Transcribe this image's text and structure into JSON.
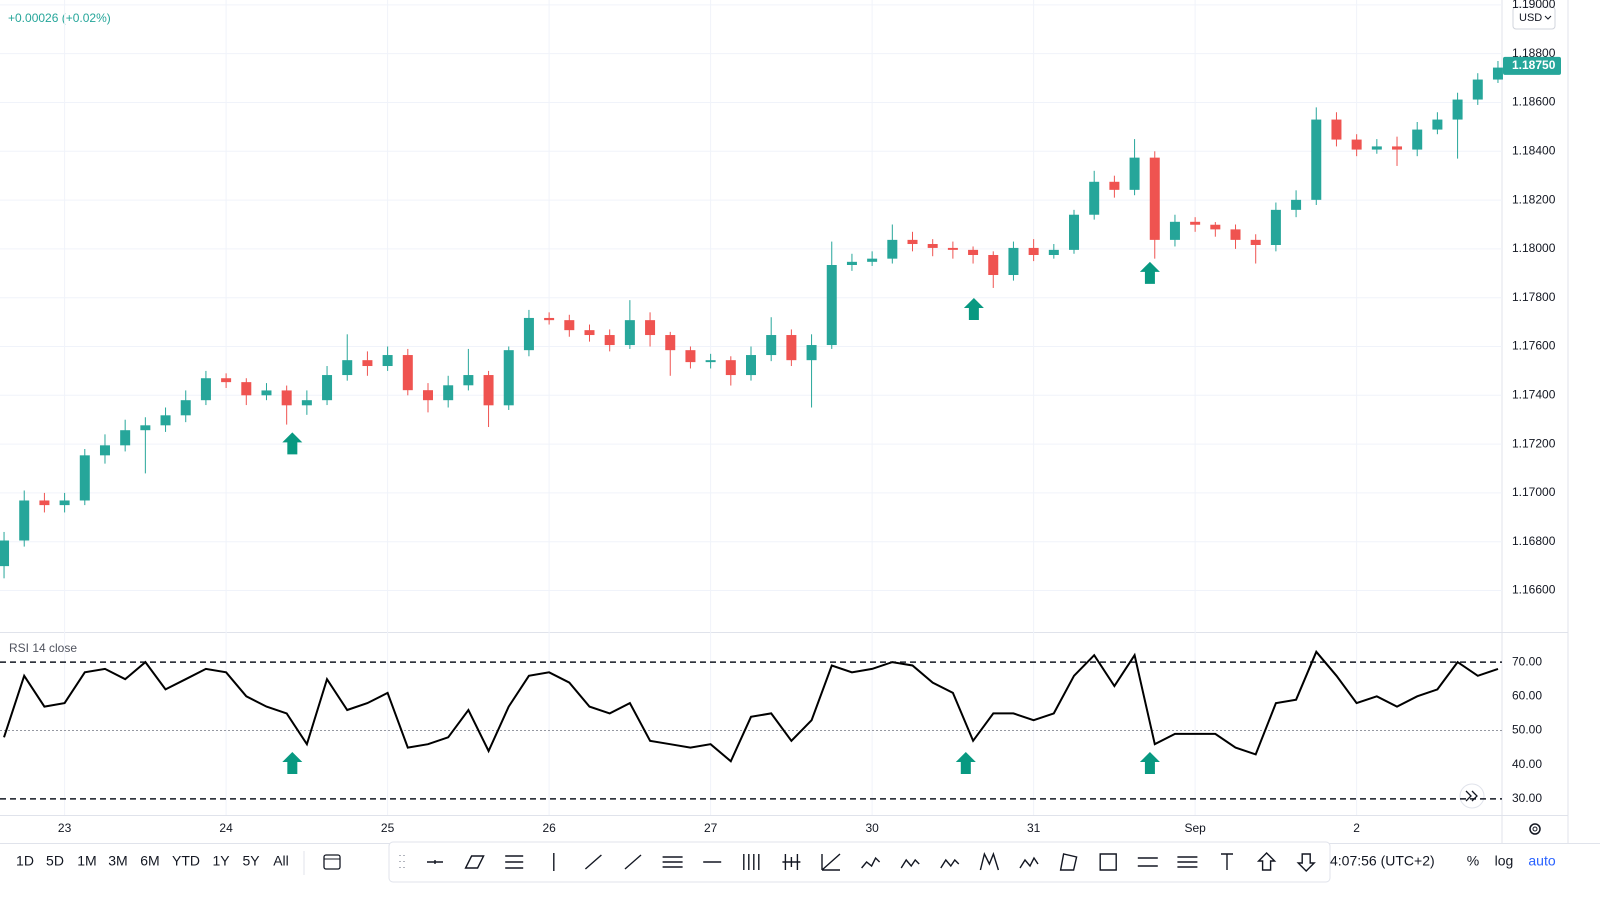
{
  "header": {
    "change": "+0.00026 (+0.02%)",
    "currency": "USD"
  },
  "chart_data": [
    {
      "type": "candlestick",
      "x": [
        -0.375,
        -0.25,
        -0.125,
        0,
        0.125,
        0.25,
        0.375,
        0.5,
        0.625,
        0.75,
        0.875,
        1,
        1.125,
        1.25,
        1.375,
        1.5,
        1.625,
        1.75,
        1.875,
        2,
        2.125,
        2.25,
        2.375,
        2.5,
        2.625,
        2.75,
        2.875,
        3,
        3.125,
        3.25,
        3.375,
        3.5,
        3.625,
        3.75,
        3.875,
        4,
        4.125,
        4.25,
        4.375,
        4.5,
        4.625,
        4.75,
        4.875,
        5,
        5.125,
        5.25,
        5.375,
        5.5,
        5.625,
        5.75,
        5.875,
        6,
        6.125,
        6.25,
        6.375,
        6.5,
        6.625,
        6.75,
        6.875,
        7,
        7.125,
        7.25,
        7.375,
        7.5,
        7.625,
        7.75,
        7.875,
        8,
        8.125,
        8.25,
        8.375,
        8.5,
        8.625,
        8.75,
        8.875
      ],
      "open": [
        1.167,
        1.16805,
        1.16969,
        1.1695,
        1.16969,
        1.17154,
        1.17195,
        1.17257,
        1.17277,
        1.17318,
        1.1738,
        1.1747,
        1.17454,
        1.174,
        1.1742,
        1.17359,
        1.1738,
        1.17483,
        1.17544,
        1.1752,
        1.17565,
        1.17421,
        1.1738,
        1.17441,
        1.17483,
        1.17359,
        1.17585,
        1.17717,
        1.17708,
        1.17667,
        1.17647,
        1.17606,
        1.17708,
        1.17647,
        1.17585,
        1.17536,
        1.17544,
        1.17483,
        1.17565,
        1.17647,
        1.17544,
        1.17606,
        1.17934,
        1.17947,
        1.1796,
        1.18037,
        1.1802,
        1.18004,
        1.17996,
        1.17975,
        1.17893,
        1.18004,
        1.17975,
        1.17996,
        1.1814,
        1.18275,
        1.18242,
        1.18374,
        1.18037,
        1.18111,
        1.18099,
        1.1808,
        1.18037,
        1.18016,
        1.1816,
        1.18201,
        1.1853,
        1.18448,
        1.18407,
        1.1842,
        1.18407,
        1.18489,
        1.1853,
        1.18612,
        1.18694
      ],
      "high": [
        1.1684,
        1.1701,
        1.17,
        1.17,
        1.1718,
        1.1724,
        1.173,
        1.1731,
        1.1735,
        1.1742,
        1.175,
        1.1749,
        1.1747,
        1.1745,
        1.1744,
        1.1742,
        1.1752,
        1.1765,
        1.1758,
        1.176,
        1.1759,
        1.1745,
        1.1748,
        1.1759,
        1.175,
        1.176,
        1.1775,
        1.1774,
        1.1773,
        1.1769,
        1.1767,
        1.1779,
        1.1774,
        1.1766,
        1.176,
        1.1757,
        1.1756,
        1.176,
        1.1772,
        1.1767,
        1.1765,
        1.1803,
        1.1798,
        1.1799,
        1.181,
        1.1807,
        1.1804,
        1.1803,
        1.1801,
        1.1799,
        1.1803,
        1.1804,
        1.1802,
        1.1816,
        1.1832,
        1.183,
        1.1845,
        1.184,
        1.1814,
        1.1813,
        1.1811,
        1.181,
        1.1806,
        1.1819,
        1.1824,
        1.1858,
        1.1856,
        1.1847,
        1.1845,
        1.1846,
        1.1852,
        1.1856,
        1.1864,
        1.1872,
        1.1877
      ],
      "low": [
        1.1665,
        1.1678,
        1.1692,
        1.1692,
        1.1695,
        1.1712,
        1.1717,
        1.1708,
        1.1725,
        1.1729,
        1.1736,
        1.1743,
        1.1736,
        1.1738,
        1.1728,
        1.1732,
        1.1736,
        1.1746,
        1.1748,
        1.175,
        1.174,
        1.1733,
        1.1735,
        1.1742,
        1.1727,
        1.1734,
        1.1756,
        1.1769,
        1.1764,
        1.1762,
        1.1758,
        1.1759,
        1.176,
        1.1748,
        1.1751,
        1.1751,
        1.1744,
        1.1746,
        1.1754,
        1.1752,
        1.1735,
        1.1759,
        1.1791,
        1.1793,
        1.1794,
        1.1799,
        1.1797,
        1.1796,
        1.1794,
        1.1784,
        1.1787,
        1.1795,
        1.1796,
        1.1798,
        1.1812,
        1.1821,
        1.1822,
        1.1796,
        1.1801,
        1.1807,
        1.1805,
        1.18,
        1.1794,
        1.1799,
        1.1813,
        1.1818,
        1.1842,
        1.1838,
        1.1839,
        1.1834,
        1.1838,
        1.1847,
        1.1837,
        1.1859,
        1.1868
      ],
      "close": [
        1.16805,
        1.16969,
        1.1695,
        1.16969,
        1.17154,
        1.17195,
        1.17257,
        1.17277,
        1.17318,
        1.1738,
        1.1747,
        1.17454,
        1.174,
        1.1742,
        1.17359,
        1.1738,
        1.17483,
        1.17544,
        1.1752,
        1.17565,
        1.17421,
        1.1738,
        1.17441,
        1.17483,
        1.17359,
        1.17585,
        1.17717,
        1.17708,
        1.17667,
        1.17647,
        1.17606,
        1.17708,
        1.17647,
        1.17585,
        1.17536,
        1.17544,
        1.17483,
        1.17565,
        1.17647,
        1.17544,
        1.17606,
        1.17934,
        1.17947,
        1.1796,
        1.18037,
        1.1802,
        1.18004,
        1.17996,
        1.17975,
        1.17893,
        1.18004,
        1.17975,
        1.17996,
        1.1814,
        1.18275,
        1.18242,
        1.18374,
        1.18037,
        1.18111,
        1.18099,
        1.1808,
        1.18037,
        1.18016,
        1.1816,
        1.18201,
        1.1853,
        1.18448,
        1.18407,
        1.1842,
        1.18407,
        1.18489,
        1.1853,
        1.18612,
        1.18694,
        1.18743
      ],
      "up_color": "#26a69a",
      "down_color": "#ef5350",
      "xlim": [
        -0.4,
        8.9
      ],
      "xticks": [
        {
          "value": 0,
          "label": "23"
        },
        {
          "value": 1,
          "label": "24"
        },
        {
          "value": 2,
          "label": "25"
        },
        {
          "value": 3,
          "label": "26"
        },
        {
          "value": 4,
          "label": "27"
        },
        {
          "value": 5,
          "label": "30"
        },
        {
          "value": 6,
          "label": "31"
        },
        {
          "value": 7,
          "label": "Sep"
        },
        {
          "value": 8,
          "label": "2"
        }
      ],
      "ylim": [
        1.1643,
        1.1902
      ],
      "yticks": [
        {
          "value": 1.166,
          "label": "1.16600"
        },
        {
          "value": 1.168,
          "label": "1.16800"
        },
        {
          "value": 1.17,
          "label": "1.17000"
        },
        {
          "value": 1.172,
          "label": "1.17200"
        },
        {
          "value": 1.174,
          "label": "1.17400"
        },
        {
          "value": 1.176,
          "label": "1.17600"
        },
        {
          "value": 1.178,
          "label": "1.17800"
        },
        {
          "value": 1.18,
          "label": "1.18000"
        },
        {
          "value": 1.182,
          "label": "1.18200"
        },
        {
          "value": 1.184,
          "label": "1.18400"
        },
        {
          "value": 1.186,
          "label": "1.18600"
        },
        {
          "value": 1.188,
          "label": "1.18800"
        },
        {
          "value": 1.19,
          "label": "1.19000"
        }
      ],
      "grid": true,
      "price_label": {
        "value": 1.1875,
        "label": "1.18750"
      },
      "markers": [
        {
          "x": 1.41,
          "y": 1.17248
        },
        {
          "x": 5.63,
          "y": 1.17799
        },
        {
          "x": 6.72,
          "y": 1.17947
        }
      ],
      "marker_color": "#089981"
    },
    {
      "type": "line",
      "title": "RSI 14 close",
      "x": [
        -0.375,
        -0.25,
        -0.125,
        0,
        0.125,
        0.25,
        0.375,
        0.5,
        0.625,
        0.75,
        0.875,
        1,
        1.125,
        1.25,
        1.375,
        1.5,
        1.625,
        1.75,
        1.875,
        2,
        2.125,
        2.25,
        2.375,
        2.5,
        2.625,
        2.75,
        2.875,
        3,
        3.125,
        3.25,
        3.375,
        3.5,
        3.625,
        3.75,
        3.875,
        4,
        4.125,
        4.25,
        4.375,
        4.5,
        4.625,
        4.75,
        4.875,
        5,
        5.125,
        5.25,
        5.375,
        5.5,
        5.625,
        5.75,
        5.875,
        6,
        6.125,
        6.25,
        6.375,
        6.5,
        6.625,
        6.75,
        6.875,
        7,
        7.125,
        7.25,
        7.375,
        7.5,
        7.625,
        7.75,
        7.875,
        8,
        8.125,
        8.25,
        8.375,
        8.5,
        8.625,
        8.75,
        8.875
      ],
      "values": [
        48,
        66,
        57,
        58,
        67,
        68,
        65,
        70,
        62,
        65,
        68,
        67,
        60,
        57,
        55,
        46,
        65,
        56,
        58,
        61,
        45,
        46,
        48,
        56,
        44,
        57,
        66,
        67,
        64,
        57,
        55,
        58,
        47,
        46,
        45,
        46,
        41,
        54,
        55,
        47,
        53,
        69,
        67,
        68,
        70,
        69,
        64,
        61,
        47,
        55,
        55,
        53,
        55,
        66,
        72,
        63,
        72,
        46,
        49,
        49,
        49,
        45,
        43,
        58,
        59,
        73,
        66,
        58,
        60,
        57,
        60,
        62,
        70,
        66,
        68
      ],
      "color": "#000000",
      "xlim": [
        -0.4,
        8.9
      ],
      "ylim": [
        25.3,
        78.5
      ],
      "yticks": [
        {
          "value": 30,
          "label": "30.00"
        },
        {
          "value": 40,
          "label": "40.00"
        },
        {
          "value": 50,
          "label": "50.00"
        },
        {
          "value": 60,
          "label": "60.00"
        },
        {
          "value": 70,
          "label": "70.00"
        }
      ],
      "levels": [
        {
          "value": 70,
          "style": "dashed"
        },
        {
          "value": 50,
          "style": "dotted"
        },
        {
          "value": 30,
          "style": "dashed"
        }
      ],
      "markers": [
        {
          "x": 1.41,
          "y": 43.7
        },
        {
          "x": 5.58,
          "y": 43.7
        },
        {
          "x": 6.72,
          "y": 43.7
        }
      ],
      "marker_color": "#089981"
    }
  ],
  "toolbar": {
    "timeframes": [
      "1D",
      "5D",
      "1M",
      "3M",
      "6M",
      "YTD",
      "1Y",
      "5Y",
      "All"
    ],
    "clock": "4:07:56 (UTC+2)",
    "scale_options": [
      "%",
      "log",
      "auto"
    ]
  }
}
